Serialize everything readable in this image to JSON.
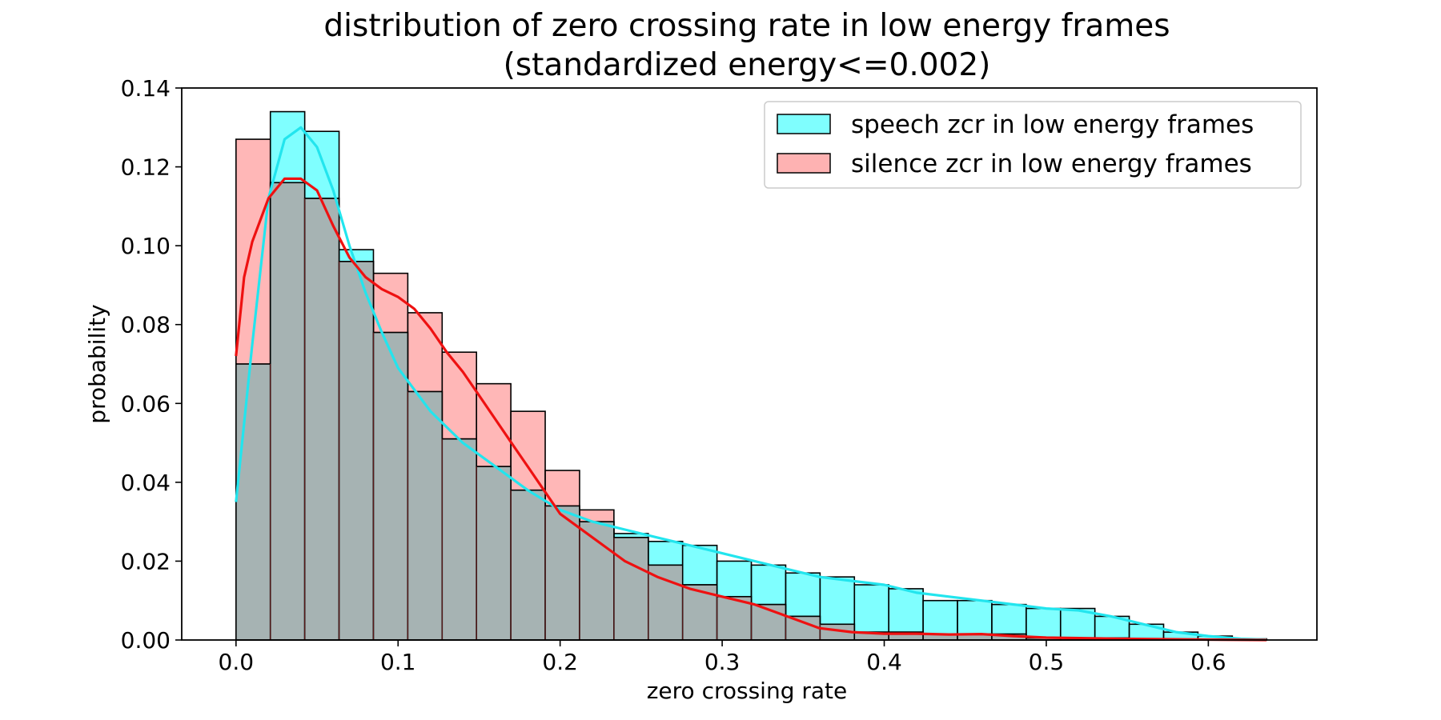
{
  "chart_data": {
    "type": "bar",
    "title_line1": "distribution of zero crossing rate in low energy frames",
    "title_line2": "(standardized energy<=0.002)",
    "xlabel": "zero crossing rate",
    "ylabel": "probability",
    "xlim": [
      -0.0335,
      0.667
    ],
    "ylim": [
      0,
      0.14
    ],
    "xticks": [
      "0.0",
      "0.1",
      "0.2",
      "0.3",
      "0.4",
      "0.5",
      "0.6"
    ],
    "xtick_values": [
      0.0,
      0.1,
      0.2,
      0.3,
      0.4,
      0.5,
      0.6
    ],
    "yticks": [
      "0.00",
      "0.02",
      "0.04",
      "0.06",
      "0.08",
      "0.10",
      "0.12",
      "0.14"
    ],
    "ytick_values": [
      0.0,
      0.02,
      0.04,
      0.06,
      0.08,
      0.1,
      0.12,
      0.14
    ],
    "grid": false,
    "legend_position": "top-right",
    "colors": {
      "speech_fill": "#00ffff",
      "speech_line": "#22e5ee",
      "silence_fill": "#ff6f6f",
      "silence_line": "#ee1111",
      "overlap_fill": "#a6b3b3"
    },
    "series": [
      {
        "name": "speech zcr in low energy frames",
        "bin_edges": [
          0.0,
          0.0212,
          0.0424,
          0.0636,
          0.0848,
          0.106,
          0.1272,
          0.1484,
          0.1696,
          0.1908,
          0.212,
          0.2332,
          0.2544,
          0.2756,
          0.2968,
          0.318,
          0.3392,
          0.3604,
          0.3816,
          0.4028,
          0.424,
          0.4452,
          0.4664,
          0.4876,
          0.5088,
          0.53,
          0.5512,
          0.5724,
          0.5936,
          0.6148,
          0.636
        ],
        "values": [
          0.07,
          0.134,
          0.129,
          0.099,
          0.078,
          0.063,
          0.051,
          0.044,
          0.038,
          0.034,
          0.03,
          0.027,
          0.025,
          0.024,
          0.02,
          0.019,
          0.017,
          0.016,
          0.014,
          0.013,
          0.01,
          0.01,
          0.009,
          0.008,
          0.008,
          0.006,
          0.004,
          0.002,
          0.001,
          0.0003
        ],
        "kde_x": [
          0.0,
          0.01,
          0.02,
          0.03,
          0.04,
          0.05,
          0.06,
          0.07,
          0.08,
          0.09,
          0.1,
          0.12,
          0.14,
          0.16,
          0.18,
          0.2,
          0.22,
          0.24,
          0.26,
          0.28,
          0.3,
          0.32,
          0.34,
          0.36,
          0.38,
          0.4,
          0.42,
          0.44,
          0.46,
          0.48,
          0.5,
          0.52,
          0.54,
          0.56,
          0.58,
          0.6,
          0.62,
          0.636
        ],
        "kde_y": [
          0.035,
          0.075,
          0.112,
          0.127,
          0.13,
          0.125,
          0.114,
          0.1,
          0.088,
          0.078,
          0.069,
          0.058,
          0.05,
          0.044,
          0.038,
          0.033,
          0.03,
          0.028,
          0.026,
          0.024,
          0.022,
          0.02,
          0.018,
          0.016,
          0.015,
          0.014,
          0.012,
          0.011,
          0.01,
          0.009,
          0.008,
          0.0075,
          0.006,
          0.004,
          0.002,
          0.001,
          0.0003,
          0.0001
        ]
      },
      {
        "name": "silence zcr in low energy frames",
        "bin_edges": [
          0.0,
          0.0212,
          0.0424,
          0.0636,
          0.0848,
          0.106,
          0.1272,
          0.1484,
          0.1696,
          0.1908,
          0.212,
          0.2332,
          0.2544,
          0.2756,
          0.2968,
          0.318,
          0.3392,
          0.3604,
          0.3816,
          0.4028,
          0.424,
          0.4452,
          0.4664,
          0.4876,
          0.5088,
          0.53,
          0.5512,
          0.5724,
          0.5936,
          0.6148,
          0.636
        ],
        "values": [
          0.127,
          0.116,
          0.112,
          0.096,
          0.093,
          0.083,
          0.073,
          0.065,
          0.058,
          0.043,
          0.033,
          0.026,
          0.019,
          0.014,
          0.011,
          0.009,
          0.006,
          0.004,
          0.002,
          0.002,
          0.0015,
          0.0015,
          0.0015,
          0.0005,
          0.0005,
          0.0005,
          0.0003,
          0.0002,
          0.0001,
          0.0001
        ],
        "kde_x": [
          0.0,
          0.005,
          0.01,
          0.02,
          0.03,
          0.04,
          0.05,
          0.06,
          0.07,
          0.08,
          0.09,
          0.1,
          0.11,
          0.12,
          0.13,
          0.14,
          0.15,
          0.16,
          0.17,
          0.18,
          0.19,
          0.2,
          0.22,
          0.24,
          0.26,
          0.28,
          0.3,
          0.32,
          0.34,
          0.36,
          0.38,
          0.4,
          0.42,
          0.44,
          0.46,
          0.48,
          0.5,
          0.55,
          0.6,
          0.636
        ],
        "kde_y": [
          0.072,
          0.092,
          0.101,
          0.112,
          0.117,
          0.117,
          0.114,
          0.105,
          0.097,
          0.092,
          0.089,
          0.087,
          0.084,
          0.079,
          0.073,
          0.068,
          0.062,
          0.056,
          0.05,
          0.044,
          0.038,
          0.032,
          0.026,
          0.02,
          0.016,
          0.013,
          0.011,
          0.009,
          0.006,
          0.003,
          0.002,
          0.0016,
          0.0016,
          0.0014,
          0.0015,
          0.001,
          0.0006,
          0.0003,
          0.0001,
          0.0
        ]
      }
    ]
  }
}
